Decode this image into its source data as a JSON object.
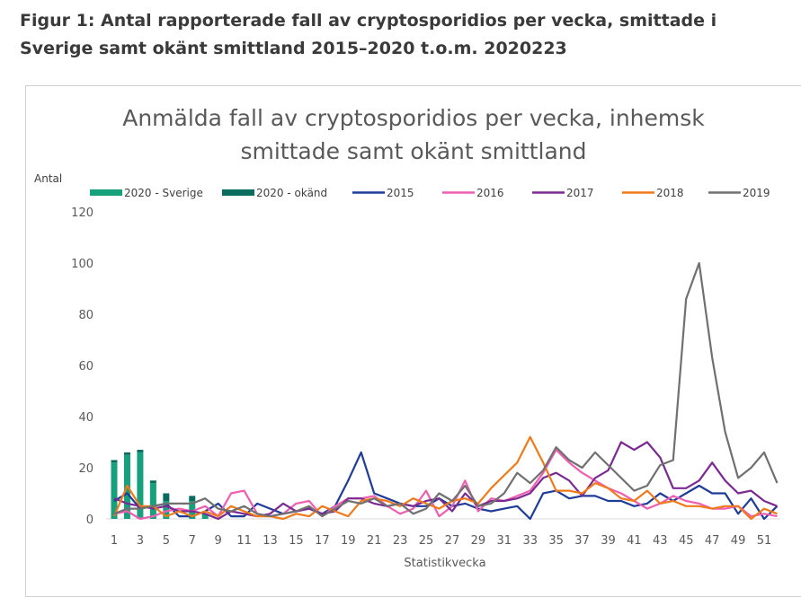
{
  "figure_title": "Figur 1: Antal rapporterade fall av cryptosporidios per vecka, smittade i Sverige samt okänt smittland 2015–2020 t.o.m. 2020223",
  "chart_data": {
    "type": "bar+line",
    "title_lines": [
      "Anmälda fall av cryptosporidios per vecka, inhemsk",
      "smittade samt okänt smittland"
    ],
    "ylabel": "Antal",
    "xlabel": "Statistikvecka",
    "ylim": [
      0,
      120
    ],
    "yticks": [
      0,
      20,
      40,
      60,
      80,
      100,
      120
    ],
    "xticks": [
      1,
      3,
      5,
      7,
      9,
      11,
      13,
      15,
      17,
      19,
      21,
      23,
      25,
      27,
      29,
      31,
      33,
      35,
      37,
      39,
      41,
      43,
      45,
      47,
      49,
      51
    ],
    "x": [
      1,
      2,
      3,
      4,
      5,
      6,
      7,
      8,
      9,
      10,
      11,
      12,
      13,
      14,
      15,
      16,
      17,
      18,
      19,
      20,
      21,
      22,
      23,
      24,
      25,
      26,
      27,
      28,
      29,
      30,
      31,
      32,
      33,
      34,
      35,
      36,
      37,
      38,
      39,
      40,
      41,
      42,
      43,
      44,
      45,
      46,
      47,
      48,
      49,
      50,
      51,
      52
    ],
    "grid": false,
    "legend_placement": "top",
    "bars_stacked": [
      {
        "name": "2020 - Sverige",
        "color": "#17a07c",
        "x": [
          1,
          2,
          3,
          4,
          5,
          6,
          7,
          8
        ],
        "values": [
          22,
          25,
          26,
          14,
          7,
          0,
          7,
          2
        ]
      },
      {
        "name": "2020 - okänd",
        "color": "#0a6b5f",
        "x": [
          1,
          2,
          3,
          4,
          5,
          6,
          7,
          8
        ],
        "values": [
          1,
          1,
          1,
          1,
          3,
          0,
          2,
          0
        ]
      }
    ],
    "series": [
      {
        "name": "2015",
        "color": "#1f3c99",
        "values": [
          7,
          10,
          4,
          5,
          6,
          1,
          1,
          3,
          6,
          1,
          1,
          6,
          4,
          2,
          3,
          4,
          2,
          5,
          15,
          26,
          10,
          8,
          6,
          5,
          5,
          8,
          5,
          6,
          4,
          3,
          4,
          5,
          0,
          10,
          11,
          8,
          9,
          9,
          7,
          7,
          5,
          6,
          10,
          7,
          10,
          13,
          10,
          10,
          2,
          8,
          0,
          5
        ]
      },
      {
        "name": "2016",
        "color": "#ee5fb0",
        "values": [
          2,
          3,
          0,
          1,
          3,
          4,
          3,
          5,
          1,
          10,
          11,
          2,
          1,
          2,
          6,
          7,
          1,
          5,
          8,
          8,
          9,
          5,
          2,
          4,
          11,
          1,
          5,
          15,
          3,
          8,
          7,
          9,
          11,
          18,
          27,
          22,
          18,
          15,
          12,
          10,
          7,
          4,
          6,
          9,
          7,
          6,
          4,
          4,
          5,
          1,
          2,
          1
        ]
      },
      {
        "name": "2017",
        "color": "#7b2a92",
        "values": [
          8,
          6,
          5,
          4,
          5,
          3,
          3,
          2,
          0,
          3,
          2,
          1,
          2,
          6,
          3,
          4,
          2,
          3,
          8,
          8,
          6,
          5,
          6,
          5,
          7,
          8,
          3,
          10,
          5,
          7,
          7,
          8,
          10,
          16,
          18,
          15,
          9,
          16,
          19,
          30,
          27,
          30,
          24,
          12,
          12,
          15,
          22,
          15,
          10,
          11,
          7,
          5
        ]
      },
      {
        "name": "2018",
        "color": "#f07a1a",
        "values": [
          1,
          13,
          5,
          5,
          1,
          3,
          1,
          3,
          1,
          5,
          3,
          1,
          1,
          0,
          2,
          1,
          5,
          3,
          1,
          7,
          8,
          7,
          5,
          8,
          6,
          4,
          7,
          8,
          6,
          12,
          17,
          22,
          32,
          22,
          11,
          11,
          10,
          14,
          12,
          8,
          7,
          11,
          6,
          7,
          5,
          5,
          4,
          5,
          5,
          0,
          4,
          2
        ]
      },
      {
        "name": "2019",
        "color": "#707070",
        "values": [
          2,
          4,
          4,
          5,
          6,
          6,
          6,
          8,
          4,
          3,
          5,
          2,
          1,
          2,
          3,
          5,
          1,
          4,
          7,
          6,
          8,
          5,
          6,
          2,
          4,
          10,
          7,
          13,
          5,
          6,
          10,
          18,
          14,
          19,
          28,
          23,
          20,
          26,
          21,
          16,
          11,
          13,
          21,
          23,
          86,
          100,
          63,
          34,
          16,
          20,
          26,
          14
        ]
      }
    ]
  }
}
